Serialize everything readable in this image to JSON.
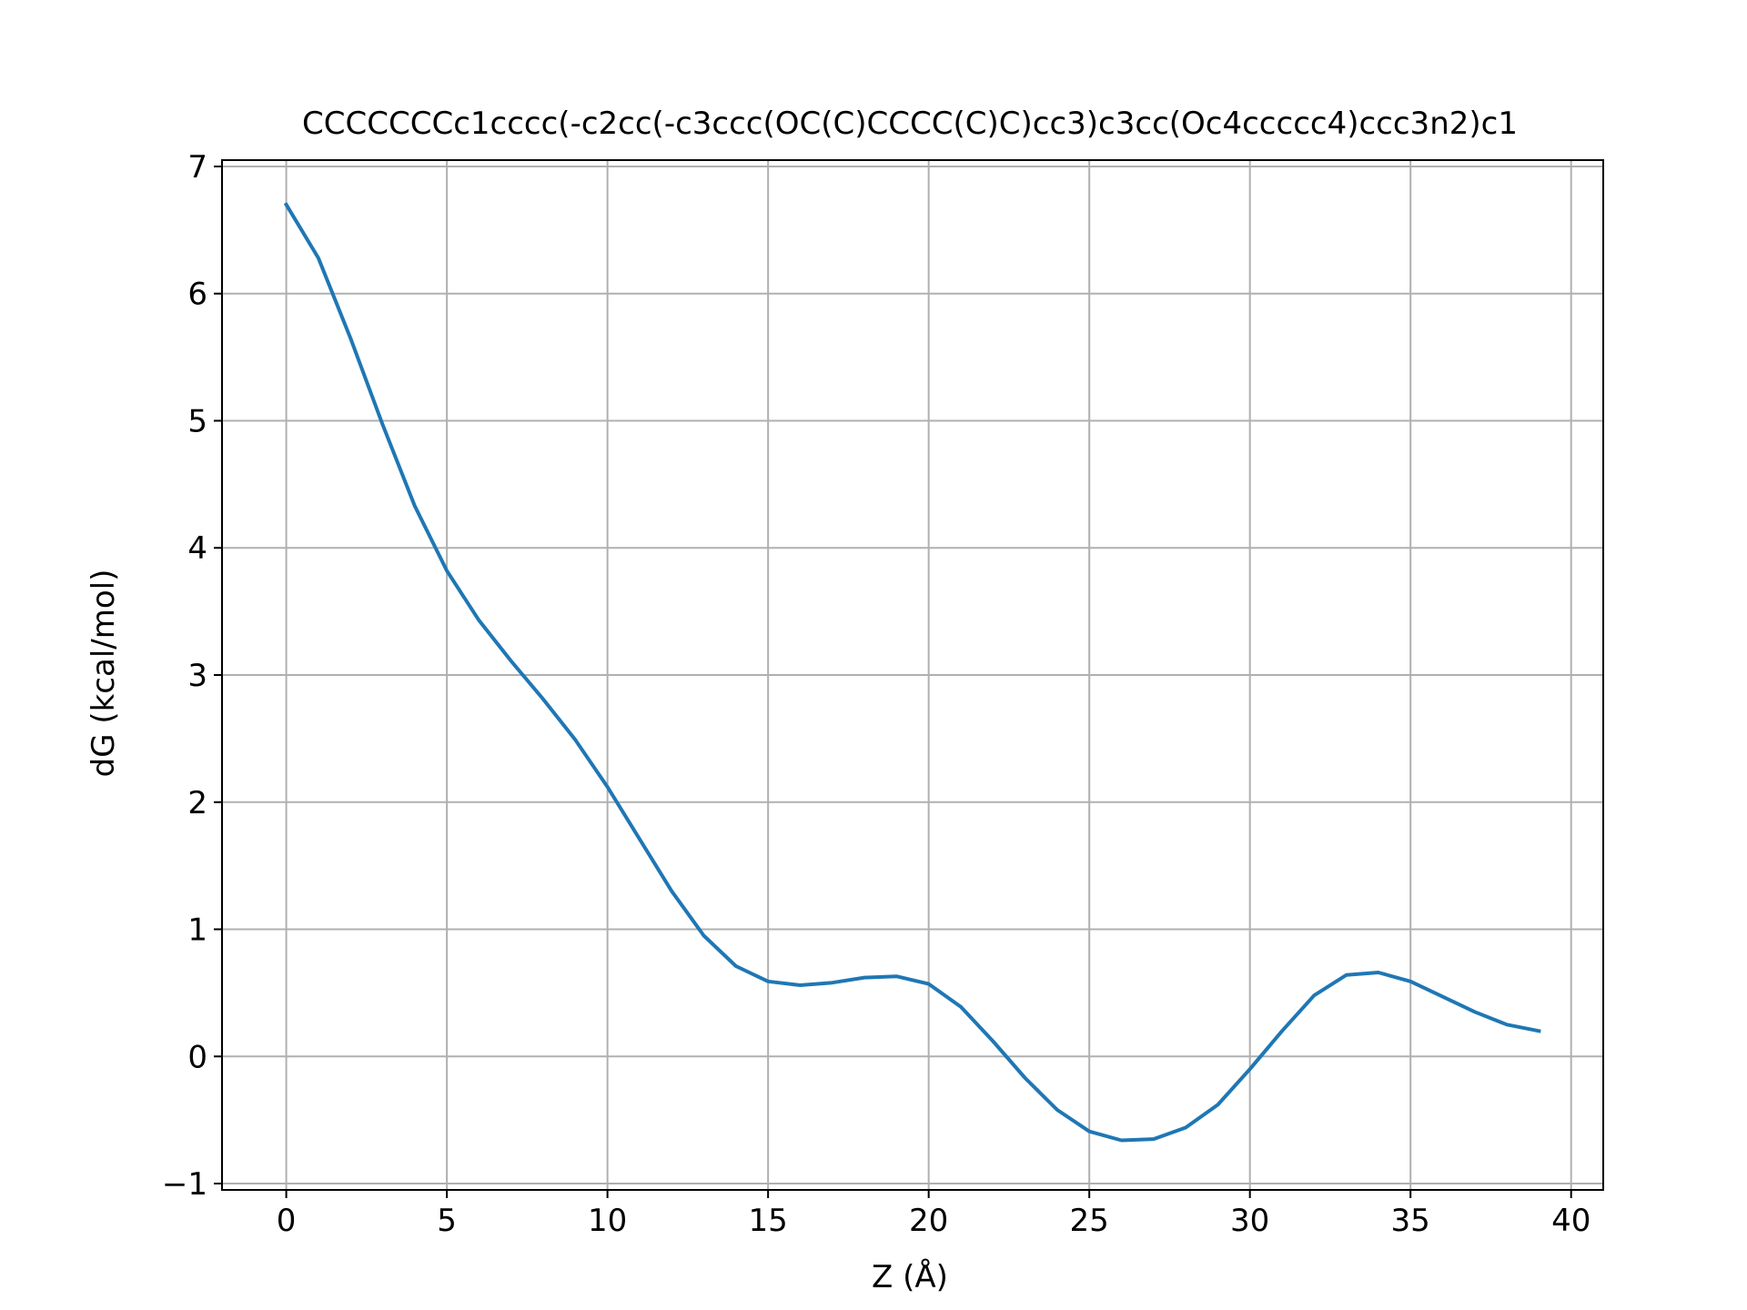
{
  "chart_data": {
    "type": "line",
    "title": "CCCCCCCc1cccc(-c2cc(-c3ccc(OC(C)CCCC(C)C)cc3)c3cc(Oc4ccccc4)ccc3n2)c1",
    "xlabel": "Z (Å)",
    "ylabel": "dG (kcal/mol)",
    "xlim": [
      -2,
      41
    ],
    "ylim": [
      -1.05,
      7.05
    ],
    "xticks": [
      0,
      5,
      10,
      15,
      20,
      25,
      30,
      35,
      40
    ],
    "yticks": [
      -1,
      0,
      1,
      2,
      3,
      4,
      5,
      6,
      7
    ],
    "xtick_labels": [
      "0",
      "5",
      "10",
      "15",
      "20",
      "25",
      "30",
      "35",
      "40"
    ],
    "ytick_labels": [
      "−1",
      "0",
      "1",
      "2",
      "3",
      "4",
      "5",
      "6",
      "7"
    ],
    "grid": true,
    "legend": false,
    "line_color": "#1f77b4",
    "grid_color": "#b0b0b0",
    "x": [
      0,
      1,
      2,
      3,
      4,
      5,
      6,
      7,
      8,
      9,
      10,
      11,
      12,
      13,
      14,
      15,
      16,
      17,
      18,
      19,
      20,
      21,
      22,
      23,
      24,
      25,
      26,
      27,
      28,
      29,
      30,
      31,
      32,
      33,
      34,
      35,
      36,
      37,
      38,
      39
    ],
    "y": [
      6.7,
      6.28,
      5.65,
      4.97,
      4.33,
      3.82,
      3.43,
      3.11,
      2.81,
      2.49,
      2.12,
      1.71,
      1.3,
      0.95,
      0.71,
      0.59,
      0.56,
      0.58,
      0.62,
      0.63,
      0.57,
      0.39,
      0.12,
      -0.17,
      -0.42,
      -0.59,
      -0.66,
      -0.65,
      -0.56,
      -0.38,
      -0.1,
      0.2,
      0.48,
      0.64,
      0.66,
      0.59,
      0.47,
      0.35,
      0.25,
      0.2
    ]
  }
}
